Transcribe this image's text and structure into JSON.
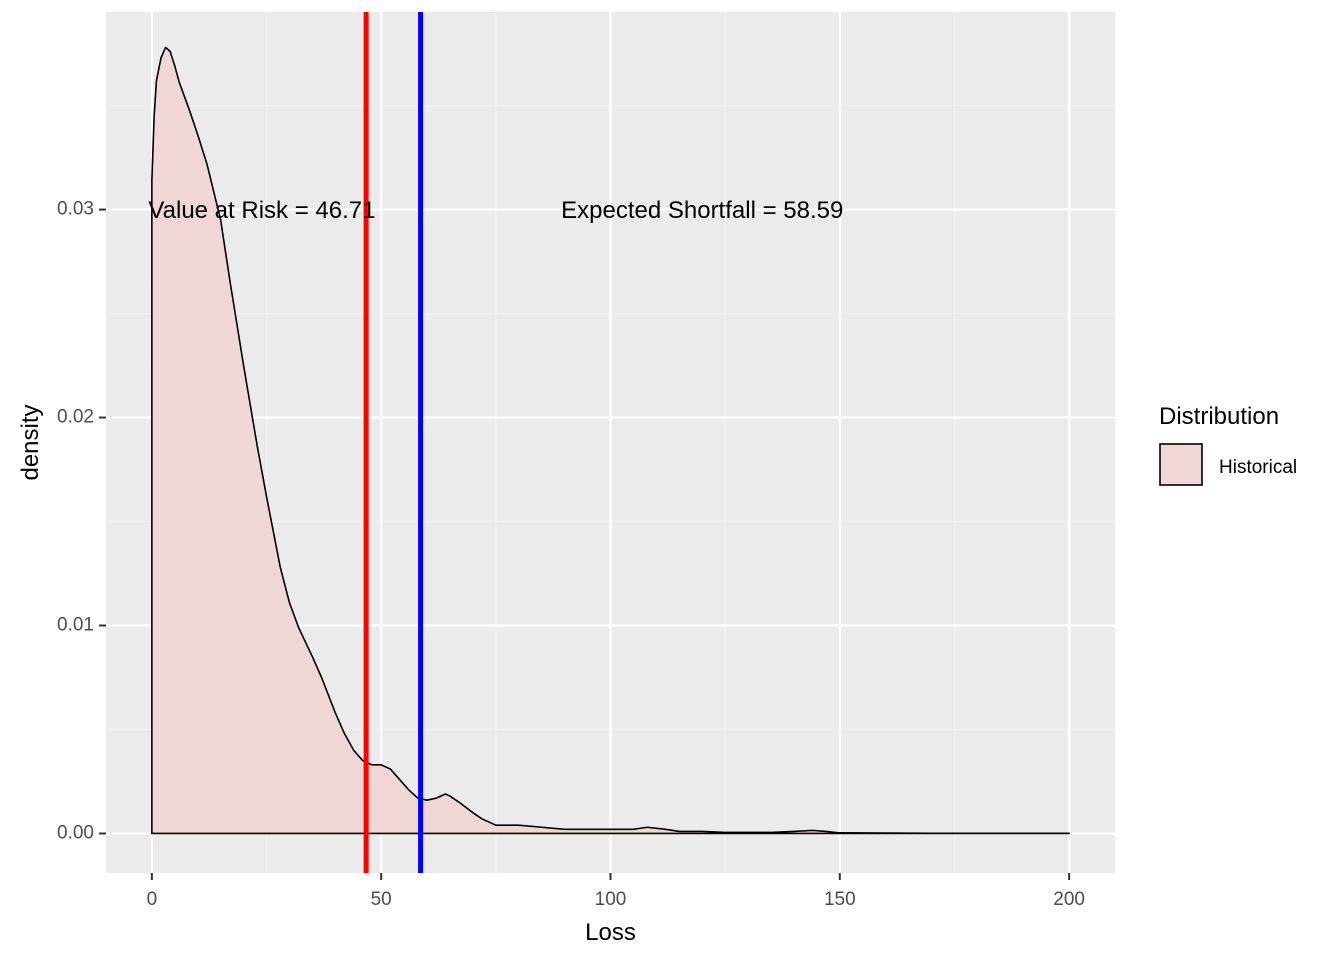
{
  "chart_data": {
    "type": "area",
    "title": "",
    "xlabel": "Loss",
    "ylabel": "density",
    "xlim": [
      -10,
      210
    ],
    "ylim": [
      -0.0019,
      0.0395
    ],
    "x_ticks": [
      0,
      50,
      100,
      150,
      200
    ],
    "x_tick_labels": [
      "0",
      "50",
      "100",
      "150",
      "200"
    ],
    "y_ticks": [
      0.0,
      0.01,
      0.02,
      0.03
    ],
    "y_tick_labels": [
      "0.00",
      "0.01",
      "0.02",
      "0.03"
    ],
    "grid": true,
    "legend": {
      "title": "Distribution",
      "position": "right",
      "entries": [
        {
          "label": "Historical",
          "fill": "#f0d6d6",
          "stroke": "#000000"
        }
      ]
    },
    "series": [
      {
        "name": "Historical",
        "fill": "#f0d6d6",
        "stroke": "#000000",
        "x": [
          0,
          0.5,
          1,
          2,
          3,
          4,
          5,
          6,
          7,
          8,
          10,
          12,
          15,
          17,
          20,
          23,
          25,
          28,
          30,
          32,
          35,
          37,
          40,
          42,
          44,
          46,
          48,
          50,
          52,
          54,
          56,
          58,
          60,
          62,
          64,
          65,
          67,
          70,
          72,
          75,
          78,
          80,
          85,
          90,
          95,
          100,
          105,
          108,
          112,
          115,
          120,
          125,
          130,
          135,
          140,
          144,
          147,
          150,
          160,
          170,
          180,
          190,
          200
        ],
        "y": [
          0.0314,
          0.0345,
          0.0362,
          0.0373,
          0.0378,
          0.0376,
          0.0369,
          0.0361,
          0.0355,
          0.0349,
          0.0336,
          0.0322,
          0.0295,
          0.0266,
          0.0225,
          0.0186,
          0.0162,
          0.0128,
          0.0111,
          0.0099,
          0.0085,
          0.0075,
          0.0058,
          0.0048,
          0.004,
          0.0035,
          0.0033,
          0.0033,
          0.0031,
          0.0026,
          0.0021,
          0.0017,
          0.0016,
          0.0017,
          0.0019,
          0.0018,
          0.0015,
          0.001,
          0.0007,
          0.0004,
          0.0004,
          0.0004,
          0.0003,
          0.0002,
          0.0002,
          0.0002,
          0.0002,
          0.0003,
          0.0002,
          0.0001,
          0.0001,
          5e-05,
          5e-05,
          5e-05,
          0.0001,
          0.00015,
          0.0001,
          3e-05,
          2e-05,
          1e-05,
          1e-05,
          1e-05,
          1e-05
        ]
      }
    ],
    "vlines": [
      {
        "x": 46.71,
        "color": "#ff0000",
        "label": "Value at Risk"
      },
      {
        "x": 58.59,
        "color": "#0000ff",
        "label": "Expected Shortfall"
      }
    ],
    "annotations": [
      {
        "text": "Value at Risk = 46.71",
        "x": 24,
        "y": 0.0299
      },
      {
        "text": "Expected Shortfall = 58.59",
        "x": 120,
        "y": 0.0299
      }
    ],
    "colors": {
      "panel_bg": "#ebebeb",
      "grid_major": "#ffffff",
      "grid_minor": "#f2f2f2"
    }
  }
}
